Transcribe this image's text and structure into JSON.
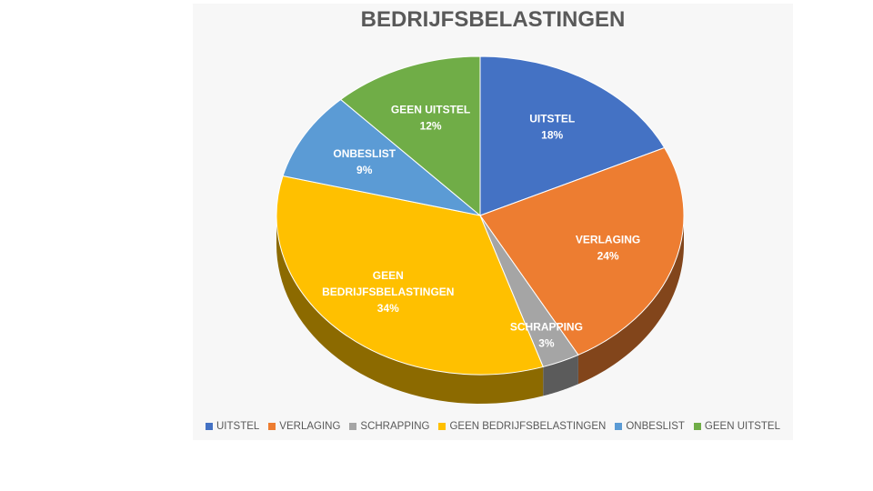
{
  "chart_data": {
    "type": "pie",
    "title": "BEDRIJFSBELASTINGEN",
    "slices": [
      {
        "label": "UITSTEL",
        "value": 18,
        "display": "18%",
        "color": "#4472c4"
      },
      {
        "label": "VERLAGING",
        "value": 24,
        "display": "24%",
        "color": "#ed7d31"
      },
      {
        "label": "SCHRAPPING",
        "value": 3,
        "display": "3%",
        "color": "#a5a5a5"
      },
      {
        "label": "GEEN BEDRIJFSBELASTINGEN",
        "value": 34,
        "display": "34%",
        "color": "#ffc000"
      },
      {
        "label": "ONBESLIST",
        "value": 9,
        "display": "9%",
        "color": "#5b9bd5"
      },
      {
        "label": "GEEN UITSTEL",
        "value": 12,
        "display": "12%",
        "color": "#70ad47"
      }
    ],
    "legend_position": "bottom",
    "style": "3d"
  }
}
